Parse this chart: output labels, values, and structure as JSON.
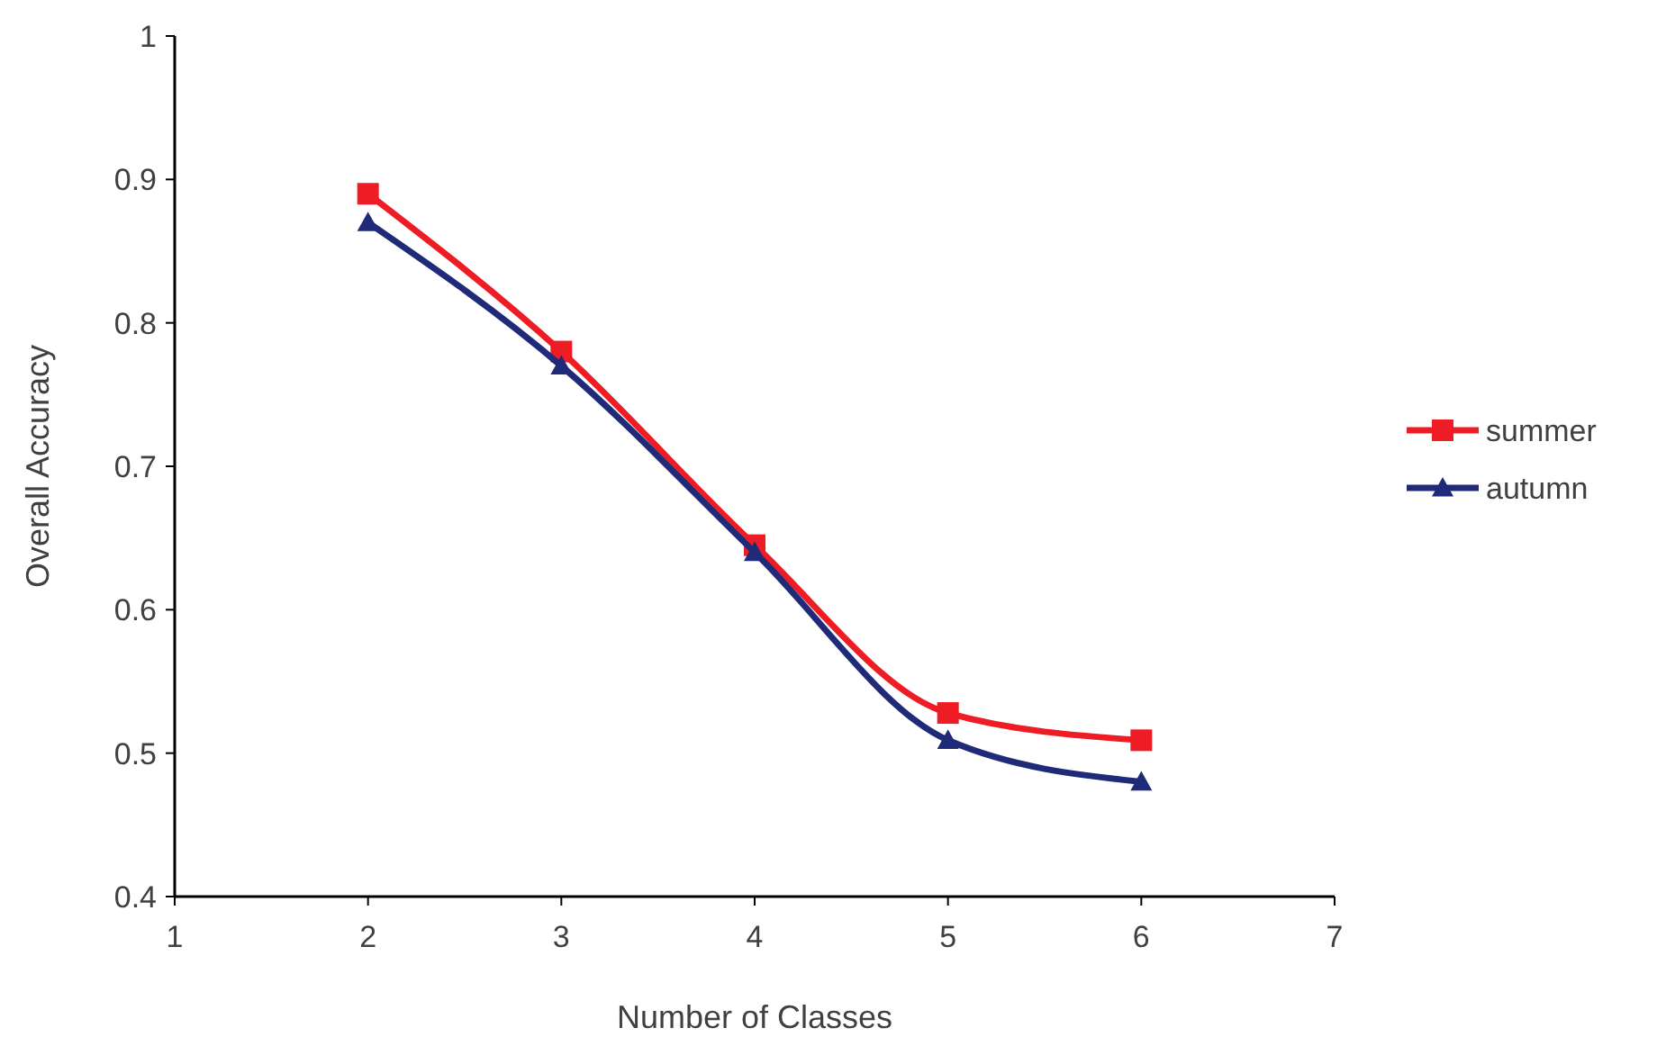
{
  "chart_data": {
    "type": "line",
    "xlabel": "Number of Classes",
    "ylabel": "Overall Accuracy",
    "x": [
      2,
      3,
      4,
      5,
      6
    ],
    "xlim": [
      1,
      7
    ],
    "xticks": [
      1,
      2,
      3,
      4,
      5,
      6,
      7
    ],
    "ylim": [
      0.4,
      1
    ],
    "yticks": [
      0.4,
      0.5,
      0.6,
      0.7,
      0.8,
      0.9,
      1
    ],
    "grid": false,
    "legend": "right",
    "line_style": "solid",
    "series": [
      {
        "name": "summer",
        "color": "#ee1c25",
        "marker": "square",
        "values": [
          0.89,
          0.78,
          0.645,
          0.528,
          0.509
        ]
      },
      {
        "name": "autumn",
        "color": "#1f2a78",
        "marker": "triangle",
        "values": [
          0.87,
          0.77,
          0.64,
          0.509,
          0.48
        ]
      }
    ]
  }
}
